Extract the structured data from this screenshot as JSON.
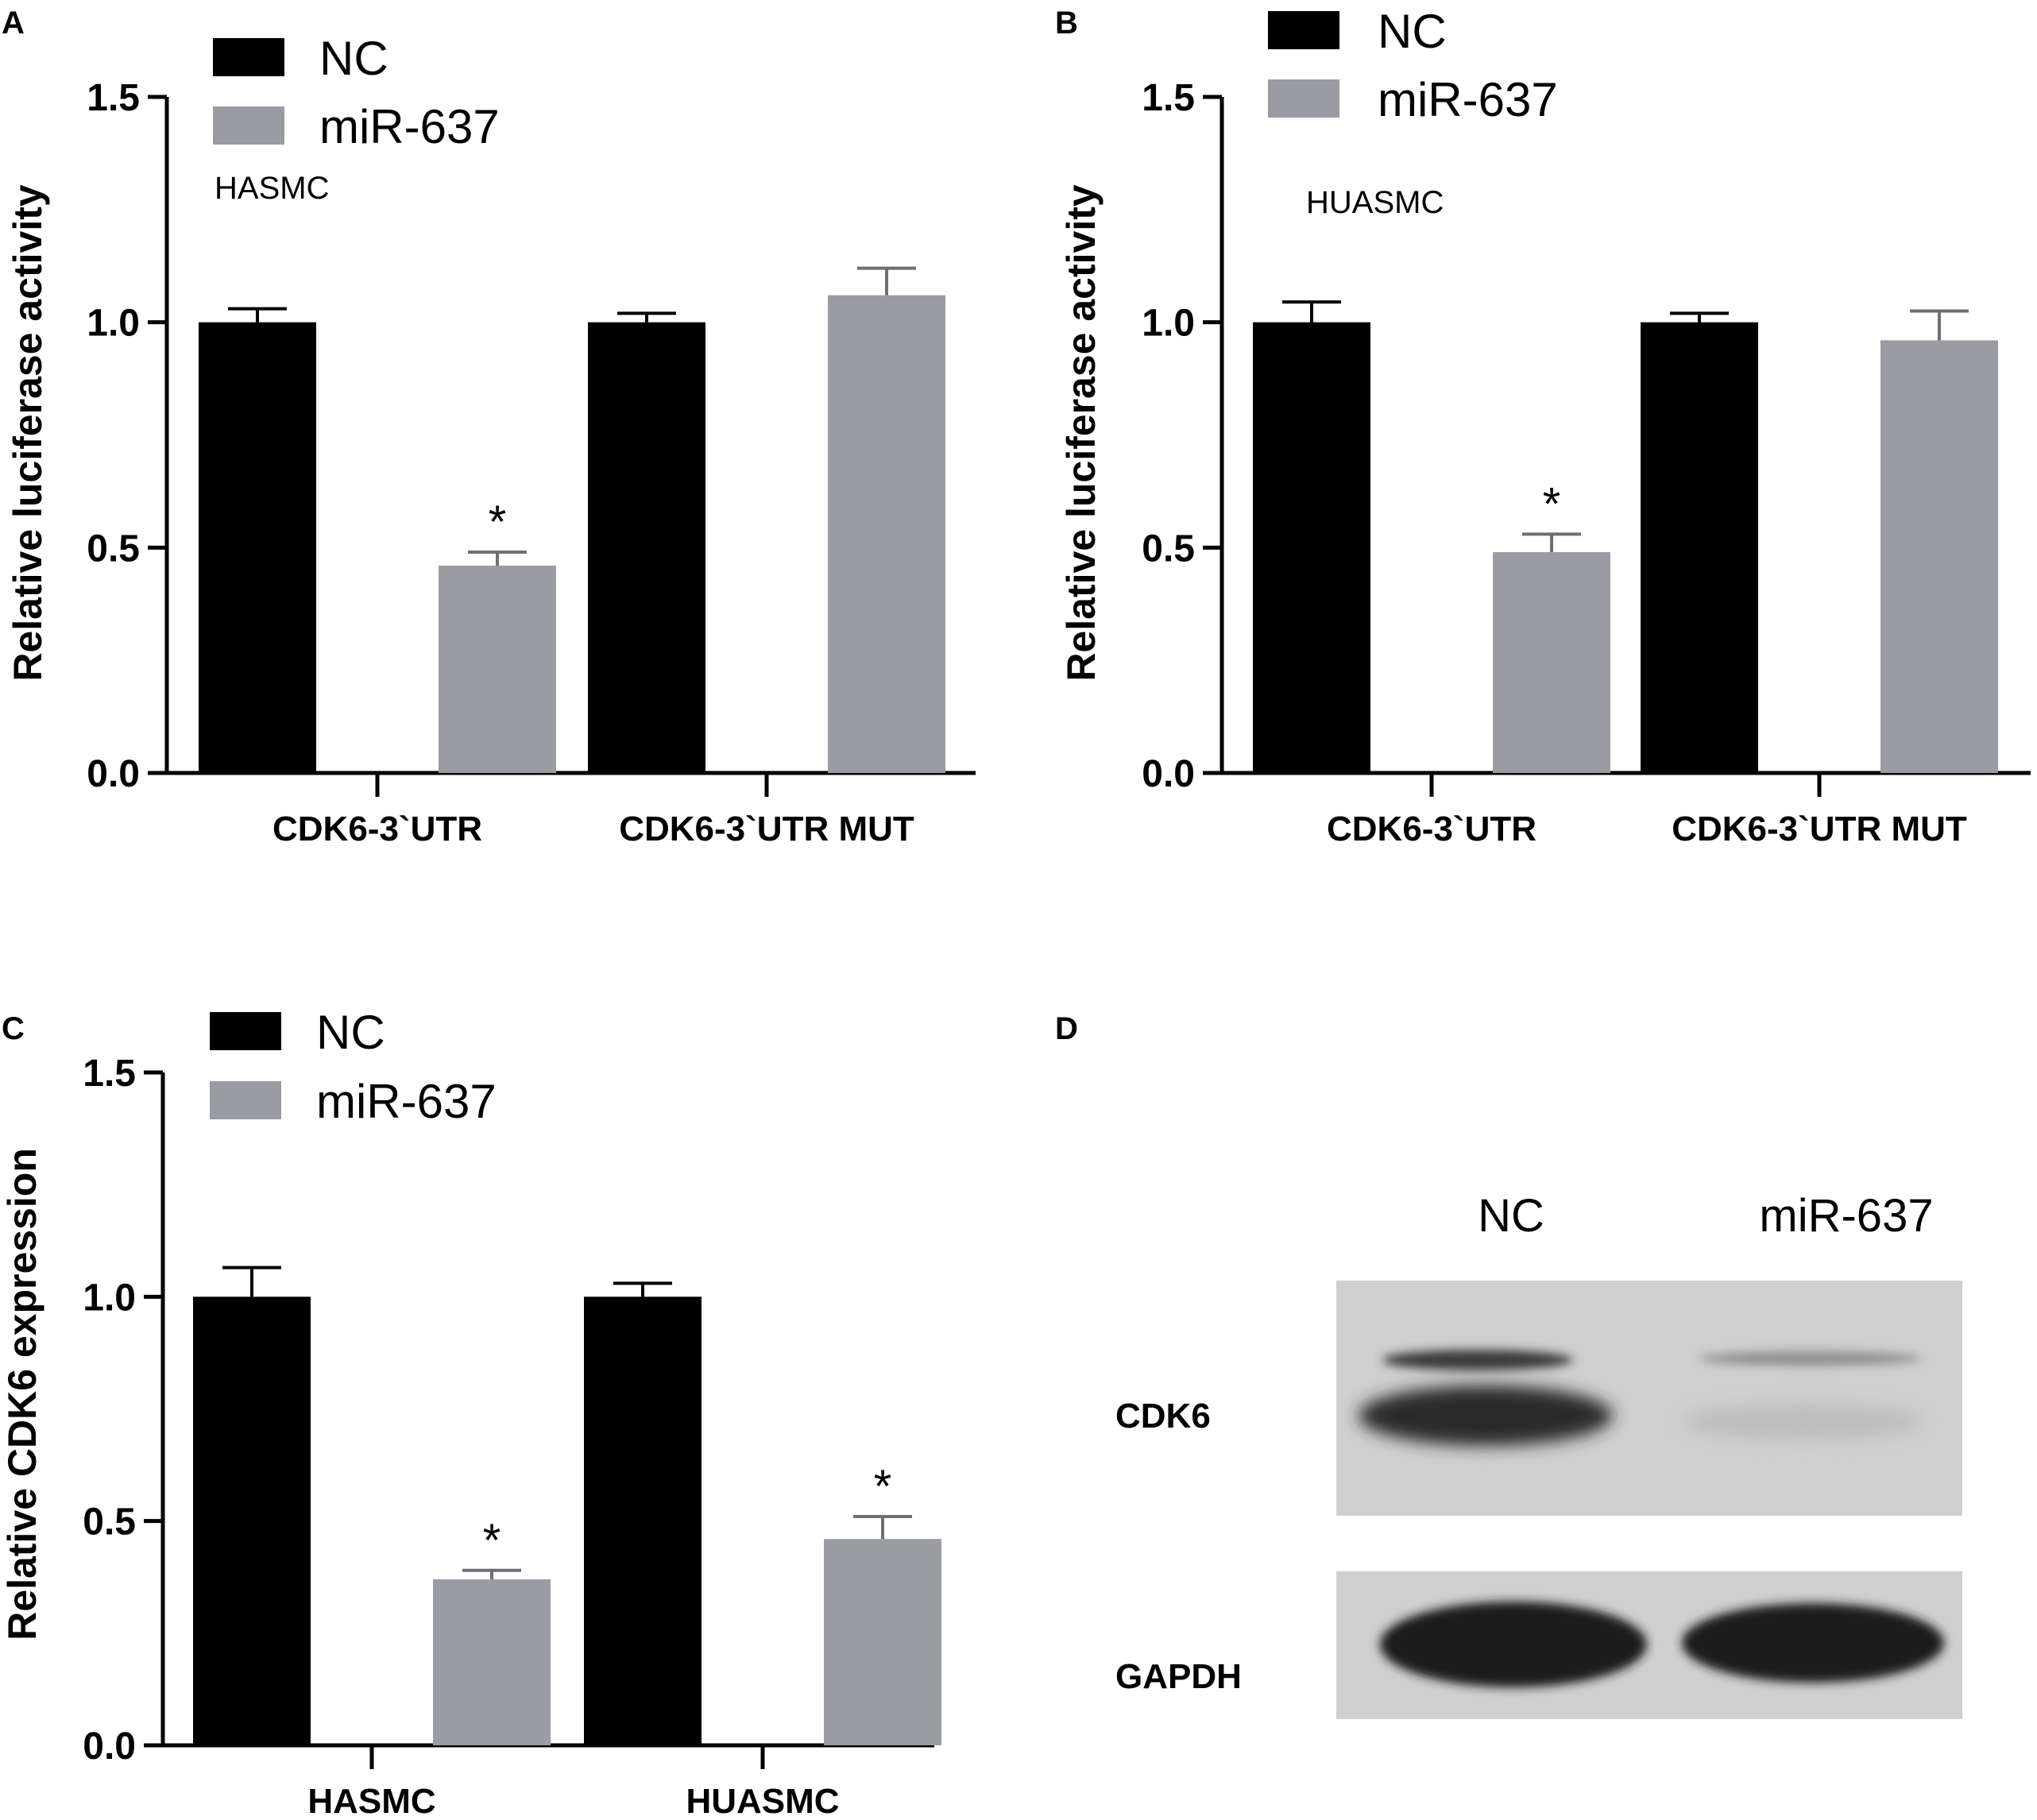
{
  "colors": {
    "nc": "#000000",
    "mir": "#9a9ca2",
    "axis": "#000000",
    "blot_bg": "#cfcfcf",
    "blot_band": "#2c2c2c"
  },
  "panels": {
    "A": {
      "label": "A"
    },
    "B": {
      "label": "B"
    },
    "C": {
      "label": "C"
    },
    "D": {
      "label": "D"
    }
  },
  "chart_data": [
    {
      "panel": "A",
      "type": "bar",
      "title": "HASMC",
      "ylabel": "Relative luciferase activity",
      "xlabel": "",
      "ylim": [
        0,
        1.5
      ],
      "yticks": [
        "0.0",
        "0.5",
        "1.0",
        "1.5"
      ],
      "categories": [
        "CDK6-3`UTR",
        "CDK6-3`UTR MUT"
      ],
      "legend": {
        "placement": "top-left"
      },
      "series": [
        {
          "name": "NC",
          "values": [
            1.0,
            1.0
          ],
          "errors": [
            0.03,
            0.02
          ],
          "sig": [
            "",
            ""
          ]
        },
        {
          "name": "miR-637",
          "values": [
            0.46,
            1.06
          ],
          "errors": [
            0.03,
            0.06
          ],
          "sig": [
            "*",
            ""
          ]
        }
      ]
    },
    {
      "panel": "B",
      "type": "bar",
      "title": "HUASMC",
      "ylabel": "Relative luciferase activity",
      "xlabel": "",
      "ylim": [
        0,
        1.5
      ],
      "yticks": [
        "0.0",
        "0.5",
        "1.0",
        "1.5"
      ],
      "categories": [
        "CDK6-3`UTR",
        "CDK6-3`UTR MUT"
      ],
      "legend": {
        "placement": "top-left"
      },
      "series": [
        {
          "name": "NC",
          "values": [
            1.0,
            1.0
          ],
          "errors": [
            0.045,
            0.02
          ],
          "sig": [
            "",
            ""
          ]
        },
        {
          "name": "miR-637",
          "values": [
            0.49,
            0.96
          ],
          "errors": [
            0.04,
            0.065
          ],
          "sig": [
            "*",
            ""
          ]
        }
      ]
    },
    {
      "panel": "C",
      "type": "bar",
      "title": "",
      "ylabel": "Relative CDK6 expression",
      "xlabel": "",
      "ylim": [
        0,
        1.5
      ],
      "yticks": [
        "0.0",
        "0.5",
        "1.0",
        "1.5"
      ],
      "categories": [
        "HASMC",
        "HUASMC"
      ],
      "legend": {
        "placement": "top-left"
      },
      "series": [
        {
          "name": "NC",
          "values": [
            1.0,
            1.0
          ],
          "errors": [
            0.065,
            0.03
          ],
          "sig": [
            "",
            ""
          ]
        },
        {
          "name": "miR-637",
          "values": [
            0.37,
            0.46
          ],
          "errors": [
            0.02,
            0.05
          ],
          "sig": [
            "*",
            "*"
          ]
        }
      ]
    }
  ],
  "blot": {
    "lanes": [
      "NC",
      "miR-637"
    ],
    "rows": [
      "CDK6",
      "GAPDH"
    ]
  }
}
